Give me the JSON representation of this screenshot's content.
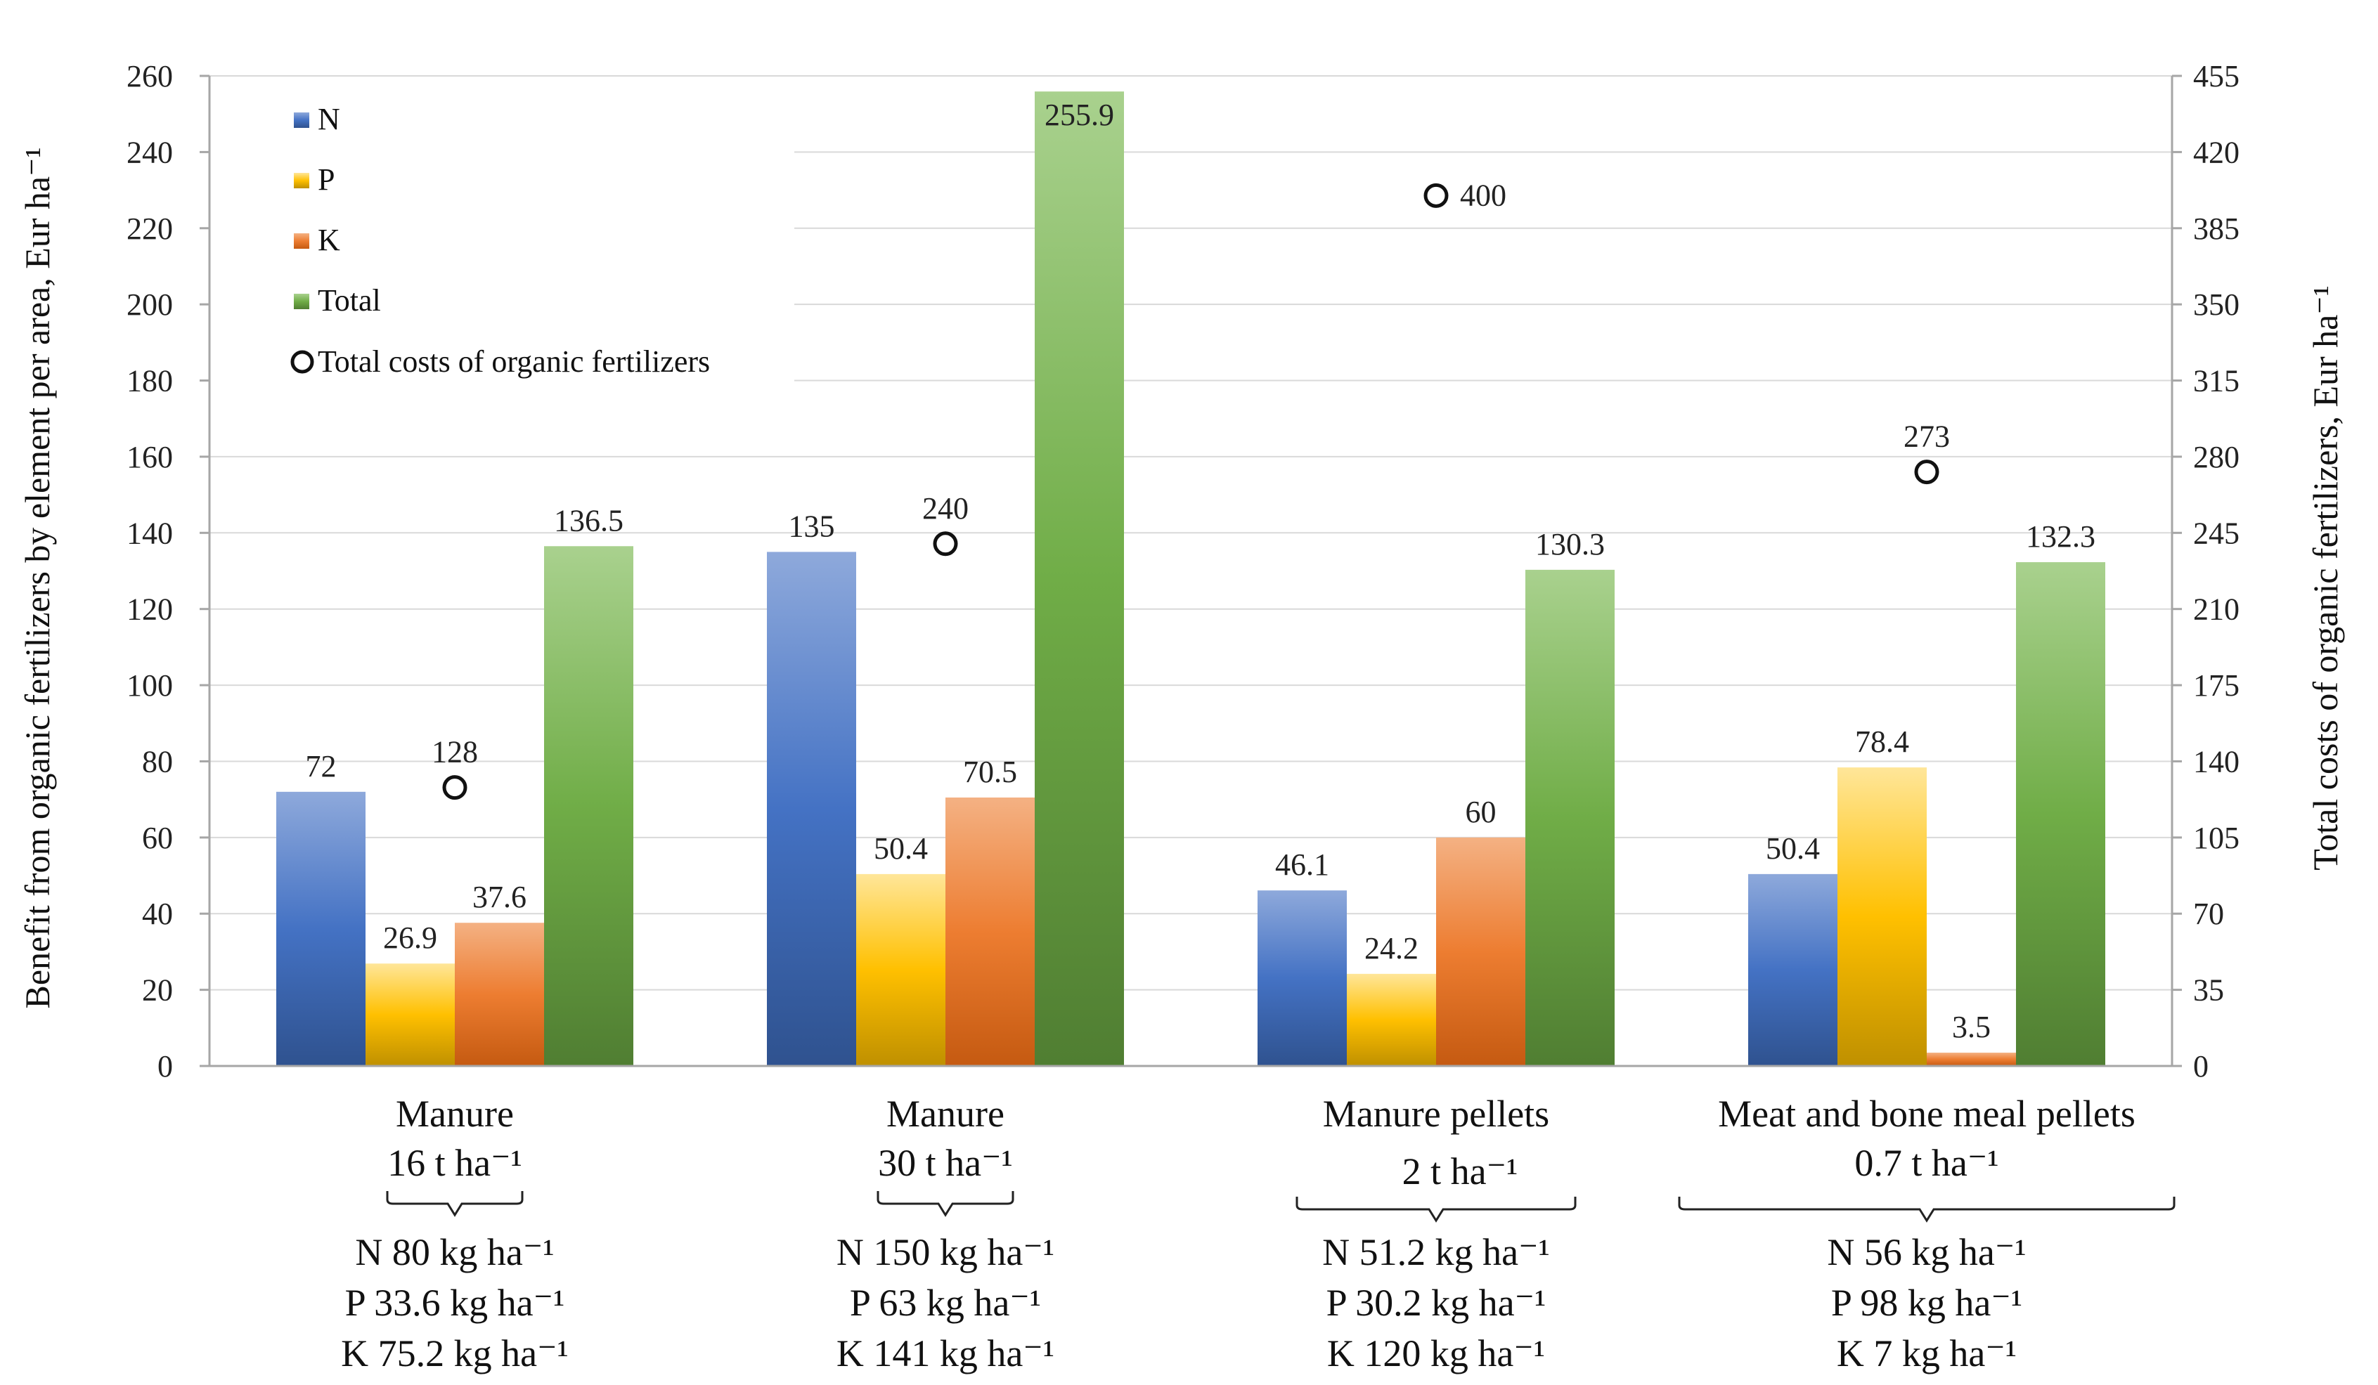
{
  "chart_data": {
    "type": "bar",
    "categories": [
      "Manure",
      "Manure",
      "Manure pellets",
      "Meat and bone meal pellets"
    ],
    "category_sublabels": [
      "16 t ha⁻¹",
      "30 t ha⁻¹",
      "2 t ha⁻¹",
      "0.7 t ha⁻¹"
    ],
    "nutrient_lines": [
      [
        "N 80 kg ha⁻¹",
        "P 33.6 kg ha⁻¹",
        "K 75.2 kg ha⁻¹"
      ],
      [
        "N 150 kg ha⁻¹",
        "P 63 kg ha⁻¹",
        "K 141 kg ha⁻¹"
      ],
      [
        "N 51.2 kg ha⁻¹",
        "P 30.2 kg ha⁻¹",
        "K 120 kg ha⁻¹"
      ],
      [
        "N 56 kg ha⁻¹",
        "P 98 kg ha⁻¹",
        "K 7 kg ha⁻¹"
      ]
    ],
    "series": [
      {
        "name": "N",
        "values": [
          72,
          135,
          46.1,
          50.4
        ],
        "labels": [
          "72",
          "135",
          "46.1",
          "50.4"
        ],
        "color": "#4472C4"
      },
      {
        "name": "P",
        "values": [
          26.9,
          50.4,
          24.2,
          78.4
        ],
        "labels": [
          "26.9",
          "50.4",
          "24.2",
          "78.4"
        ],
        "color": "#FFC000"
      },
      {
        "name": "K",
        "values": [
          37.6,
          70.5,
          60,
          3.5
        ],
        "labels": [
          "37.6",
          "70.5",
          "60",
          "3.5"
        ],
        "color": "#ED7D31"
      },
      {
        "name": "Total",
        "values": [
          136.5,
          255.9,
          130.3,
          132.3
        ],
        "labels": [
          "136.5",
          "255.9",
          "130.3",
          "132.3"
        ],
        "color": "#70AD47"
      }
    ],
    "secondary_series": {
      "name": "Total costs of organic fertilizers",
      "values": [
        128,
        240,
        400,
        273
      ],
      "labels": [
        "128",
        "240",
        "400",
        "273"
      ],
      "axis": "right",
      "marker": "circle"
    },
    "ylabel": "Benefit from organic fertilizers  by element per area, Eur ha⁻¹",
    "y2label": "Total costs of organic fertilizers,  Eur ha⁻¹",
    "ylim": [
      0,
      260
    ],
    "y2lim": [
      0,
      455
    ],
    "yticks": [
      0,
      20,
      40,
      60,
      80,
      100,
      120,
      140,
      160,
      180,
      200,
      220,
      240,
      260
    ],
    "y2ticks": [
      0,
      35,
      70,
      105,
      140,
      175,
      210,
      245,
      280,
      315,
      350,
      385,
      420,
      455
    ],
    "legend": [
      "N",
      "P",
      "K",
      "Total",
      "Total costs of organic fertilizers"
    ],
    "legend_position": "top-left",
    "grid": true
  }
}
